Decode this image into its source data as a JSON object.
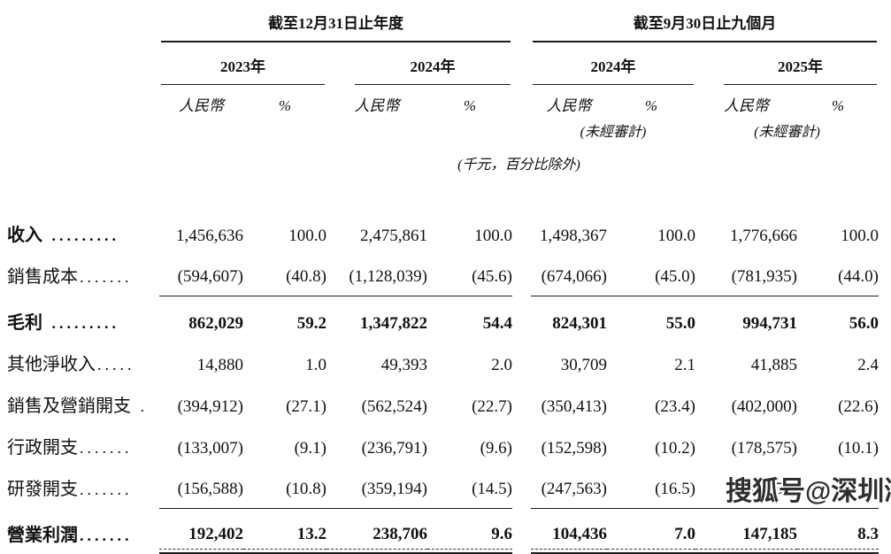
{
  "table": {
    "unit_note": "(千元，百分比除外)",
    "col_headers": {
      "rmb": "人民幣",
      "pct": "%"
    },
    "groups": [
      {
        "title": "截至12月31日止年度",
        "years": [
          {
            "label": "2023年",
            "note": ""
          },
          {
            "label": "2024年",
            "note": ""
          }
        ]
      },
      {
        "title": "截至9月30日止九個月",
        "years": [
          {
            "label": "2024年",
            "note": "(未經審計)"
          },
          {
            "label": "2025年",
            "note": "(未經審計)"
          }
        ]
      }
    ],
    "rows": [
      {
        "label": "收入",
        "leader": " .........",
        "label_bold": true,
        "values_bold": false,
        "underline": false,
        "double_rule": false,
        "values": [
          "1,456,636",
          "100.0",
          "2,475,861",
          "100.0",
          "1,498,367",
          "100.0",
          "1,776,666",
          "100.0"
        ]
      },
      {
        "label": "銷售成本",
        "leader": ".......",
        "label_bold": false,
        "values_bold": false,
        "underline": true,
        "double_rule": false,
        "values": [
          "(594,607)",
          "(40.8)",
          "(1,128,039)",
          "(45.6)",
          "(674,066)",
          "(45.0)",
          "(781,935)",
          "(44.0)"
        ]
      },
      {
        "label": "毛利",
        "leader": " .........",
        "label_bold": true,
        "values_bold": true,
        "underline": false,
        "double_rule": false,
        "values": [
          "862,029",
          "59.2",
          "1,347,822",
          "54.4",
          "824,301",
          "55.0",
          "994,731",
          "56.0"
        ]
      },
      {
        "label": "其他淨收入",
        "leader": ".....",
        "label_bold": false,
        "values_bold": false,
        "underline": false,
        "double_rule": false,
        "values": [
          "14,880",
          "1.0",
          "49,393",
          "2.0",
          "30,709",
          "2.1",
          "41,885",
          "2.4"
        ]
      },
      {
        "label": "銷售及營銷開支",
        "leader": " .",
        "label_bold": false,
        "values_bold": false,
        "underline": false,
        "double_rule": false,
        "values": [
          "(394,912)",
          "(27.1)",
          "(562,524)",
          "(22.7)",
          "(350,413)",
          "(23.4)",
          "(402,000)",
          "(22.6)"
        ]
      },
      {
        "label": "行政開支",
        "leader": ".......",
        "label_bold": false,
        "values_bold": false,
        "underline": false,
        "double_rule": false,
        "values": [
          "(133,007)",
          "(9.1)",
          "(236,791)",
          "(9.6)",
          "(152,598)",
          "(10.2)",
          "(178,575)",
          "(10.1)"
        ]
      },
      {
        "label": "研發開支",
        "leader": ".......",
        "label_bold": false,
        "values_bold": false,
        "underline": true,
        "double_rule": false,
        "values": [
          "(156,588)",
          "(10.8)",
          "(359,194)",
          "(14.5)",
          "(247,563)",
          "(16.5)",
          "(308,856)",
          "(17.4)"
        ]
      },
      {
        "label": "營業利潤",
        "leader": ".......",
        "label_bold": true,
        "values_bold": true,
        "underline": false,
        "double_rule": true,
        "values": [
          "192,402",
          "13.2",
          "238,706",
          "9.6",
          "104,436",
          "7.0",
          "147,185",
          "8.3"
        ]
      }
    ]
  },
  "watermark": {
    "text": "搜狐号@深圳湾"
  }
}
